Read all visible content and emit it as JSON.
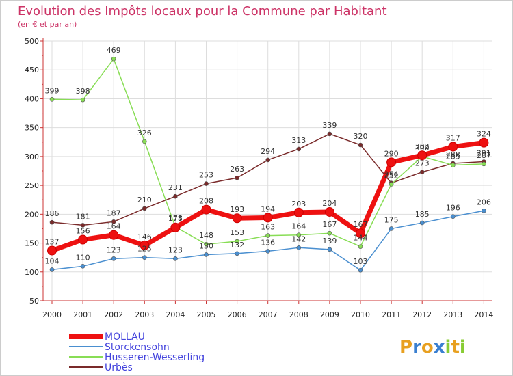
{
  "chart_data": {
    "type": "line",
    "title": "Evolution des Impôts locaux pour la Commune par Habitant",
    "subtitle": "(en € et par an)",
    "xlabel": "",
    "ylabel": "",
    "categories": [
      "2000",
      "2001",
      "2002",
      "2003",
      "2004",
      "2005",
      "2006",
      "2007",
      "2008",
      "2009",
      "2010",
      "2011",
      "2012",
      "2013",
      "2014"
    ],
    "ylim": [
      50,
      500
    ],
    "yticks": [
      50,
      100,
      150,
      200,
      250,
      300,
      350,
      400,
      450,
      500
    ],
    "grid": true,
    "legend_position": "bottom-left",
    "series": [
      {
        "name": "Urbès",
        "color": "#7a2a2a",
        "values": [
          186,
          181,
          187,
          210,
          231,
          253,
          263,
          294,
          313,
          339,
          320,
          254,
          273,
          288,
          291
        ]
      },
      {
        "name": "Storckensohn",
        "color": "#4a8fd0",
        "values": [
          104,
          110,
          123,
          125,
          123,
          130,
          132,
          136,
          142,
          139,
          103,
          175,
          185,
          196,
          206
        ]
      },
      {
        "name": "Husseren-Wesserling",
        "color": "#88dd55",
        "values": [
          399,
          398,
          469,
          326,
          178,
          148,
          153,
          163,
          164,
          167,
          144,
          252,
          300,
          285,
          287
        ]
      },
      {
        "name": "MOLLAU",
        "color": "#ee1111",
        "values": [
          137,
          156,
          164,
          146,
          177,
          208,
          193,
          194,
          203,
          204,
          167,
          290,
          302,
          317,
          324
        ]
      }
    ],
    "legend_order": [
      "MOLLAU",
      "Storckensohn",
      "Husseren-Wesserling",
      "Urbès"
    ]
  },
  "brand": {
    "logo_text": "Proxiti"
  }
}
